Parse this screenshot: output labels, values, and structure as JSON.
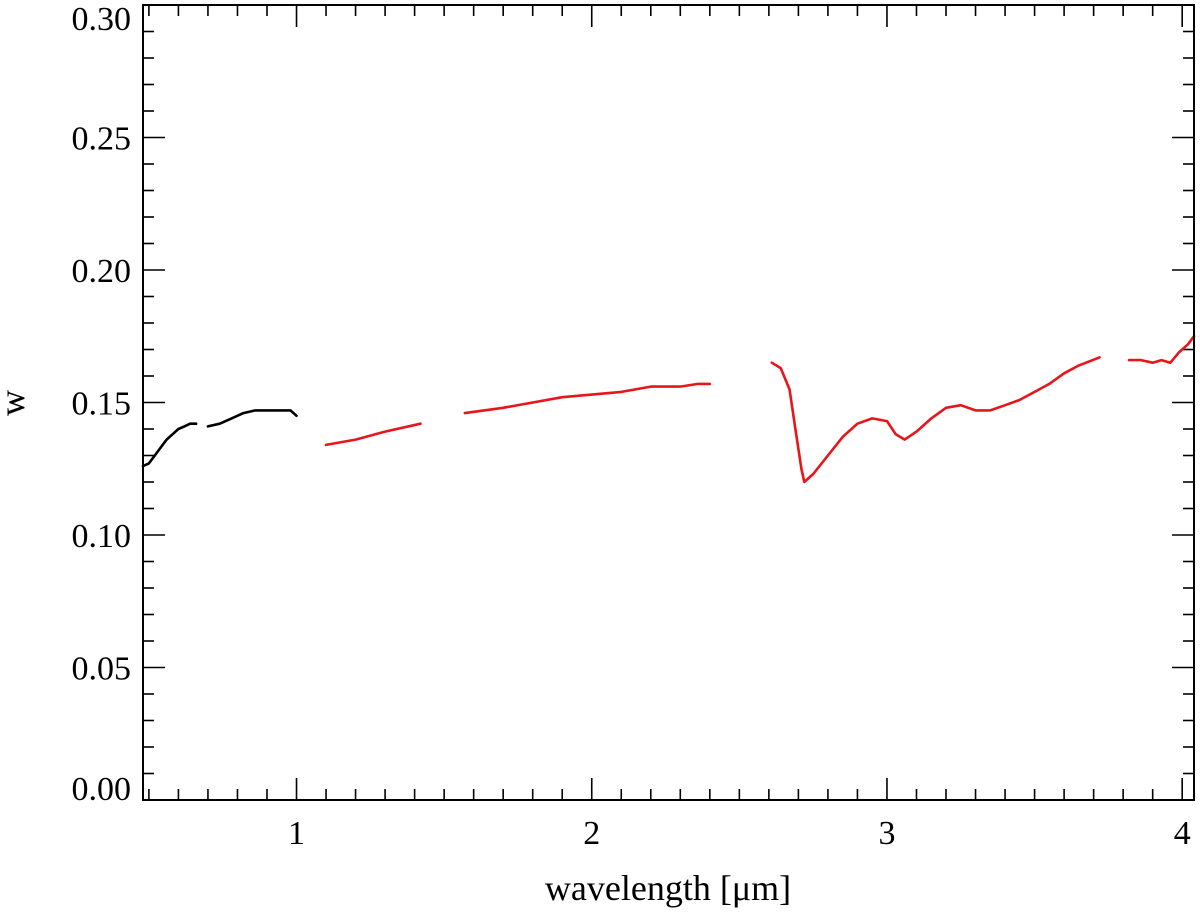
{
  "chart_data": {
    "type": "line",
    "xlabel": "wavelength [μm]",
    "ylabel": "w",
    "xlim": [
      0.48,
      4.04
    ],
    "ylim": [
      0.0,
      0.3
    ],
    "x_ticks": [
      1,
      2,
      3,
      4
    ],
    "x_tick_labels": [
      "1",
      "2",
      "3",
      "4"
    ],
    "x_minor_step": 0.1,
    "y_ticks": [
      0.0,
      0.05,
      0.1,
      0.15,
      0.2,
      0.25,
      0.3
    ],
    "y_tick_labels": [
      "0.00",
      "0.05",
      "0.10",
      "0.15",
      "0.20",
      "0.25",
      "0.30"
    ],
    "y_minor_step": 0.01,
    "grid": false,
    "legend": "none",
    "series": [
      {
        "color": "#000000",
        "segments": [
          [
            [
              0.48,
              0.126
            ],
            [
              0.5,
              0.127
            ],
            [
              0.52,
              0.13
            ],
            [
              0.54,
              0.133
            ],
            [
              0.56,
              0.136
            ],
            [
              0.58,
              0.138
            ],
            [
              0.6,
              0.14
            ],
            [
              0.62,
              0.141
            ],
            [
              0.64,
              0.142
            ],
            [
              0.66,
              0.142
            ]
          ],
          [
            [
              0.7,
              0.141
            ],
            [
              0.74,
              0.142
            ],
            [
              0.78,
              0.144
            ],
            [
              0.82,
              0.146
            ],
            [
              0.86,
              0.147
            ],
            [
              0.9,
              0.147
            ],
            [
              0.94,
              0.147
            ],
            [
              0.98,
              0.147
            ],
            [
              1.0,
              0.145
            ]
          ]
        ]
      },
      {
        "color": "#e8151b",
        "segments": [
          [
            [
              1.1,
              0.134
            ],
            [
              1.2,
              0.136
            ],
            [
              1.3,
              0.139
            ],
            [
              1.42,
              0.142
            ]
          ],
          [
            [
              1.57,
              0.146
            ],
            [
              1.7,
              0.148
            ],
            [
              1.8,
              0.15
            ],
            [
              1.9,
              0.152
            ],
            [
              2.0,
              0.153
            ],
            [
              2.1,
              0.154
            ],
            [
              2.2,
              0.156
            ],
            [
              2.3,
              0.156
            ],
            [
              2.36,
              0.157
            ],
            [
              2.4,
              0.157
            ]
          ],
          [
            [
              2.61,
              0.165
            ],
            [
              2.64,
              0.163
            ],
            [
              2.67,
              0.155
            ],
            [
              2.69,
              0.14
            ],
            [
              2.71,
              0.125
            ],
            [
              2.72,
              0.12
            ],
            [
              2.75,
              0.123
            ],
            [
              2.8,
              0.13
            ],
            [
              2.85,
              0.137
            ],
            [
              2.9,
              0.142
            ],
            [
              2.95,
              0.144
            ],
            [
              3.0,
              0.143
            ],
            [
              3.03,
              0.138
            ],
            [
              3.06,
              0.136
            ],
            [
              3.1,
              0.139
            ],
            [
              3.15,
              0.144
            ],
            [
              3.2,
              0.148
            ],
            [
              3.25,
              0.149
            ],
            [
              3.3,
              0.147
            ],
            [
              3.35,
              0.147
            ],
            [
              3.4,
              0.149
            ],
            [
              3.45,
              0.151
            ],
            [
              3.5,
              0.154
            ],
            [
              3.55,
              0.157
            ],
            [
              3.6,
              0.161
            ],
            [
              3.65,
              0.164
            ],
            [
              3.72,
              0.167
            ]
          ],
          [
            [
              3.82,
              0.166
            ],
            [
              3.86,
              0.166
            ],
            [
              3.9,
              0.165
            ],
            [
              3.93,
              0.166
            ],
            [
              3.96,
              0.165
            ],
            [
              3.99,
              0.169
            ],
            [
              4.02,
              0.172
            ],
            [
              4.04,
              0.175
            ]
          ]
        ]
      }
    ]
  }
}
